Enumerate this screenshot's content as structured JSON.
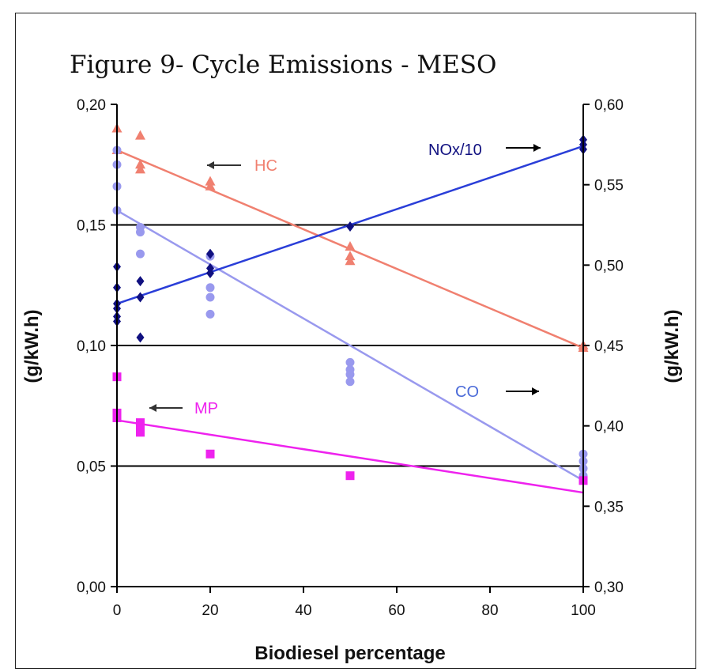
{
  "chart_data": {
    "type": "scatter",
    "title": "Figure 9- Cycle Emissions - MESO",
    "xlabel": "Biodiesel percentage",
    "ylabel_left": "(g/kW.h)",
    "ylabel_right": "(g/kW.h)",
    "xlim": [
      0,
      100
    ],
    "ylim_left": [
      0,
      0.2
    ],
    "ylim_right": [
      0.3,
      0.6
    ],
    "x_ticks": [
      "0",
      "20",
      "40",
      "60",
      "80",
      "100"
    ],
    "y_ticks_left": [
      "0,00",
      "0,05",
      "0,10",
      "0,15",
      "0,20"
    ],
    "y_ticks_right": [
      "0,30",
      "0,35",
      "0,40",
      "0,45",
      "0,50",
      "0,55",
      "0,60"
    ],
    "gridlines_left": [
      0.05,
      0.1,
      0.15
    ],
    "series": [
      {
        "name": "HC",
        "axis": "left",
        "color": "#f08070",
        "marker": "triangle",
        "points": [
          [
            0,
            0.19
          ],
          [
            0,
            0.181
          ],
          [
            5,
            0.187
          ],
          [
            5,
            0.175
          ],
          [
            5,
            0.173
          ],
          [
            20,
            0.168
          ],
          [
            20,
            0.166
          ],
          [
            50,
            0.141
          ],
          [
            50,
            0.137
          ],
          [
            50,
            0.135
          ],
          [
            100,
            0.1
          ],
          [
            100,
            0.099
          ]
        ],
        "trend": [
          [
            0,
            0.181
          ],
          [
            100,
            0.099
          ]
        ]
      },
      {
        "name": "CO",
        "axis": "left",
        "color": "#9999ee",
        "marker": "circle",
        "points": [
          [
            0,
            0.181
          ],
          [
            0,
            0.175
          ],
          [
            0,
            0.166
          ],
          [
            0,
            0.156
          ],
          [
            5,
            0.149
          ],
          [
            5,
            0.147
          ],
          [
            5,
            0.138
          ],
          [
            20,
            0.137
          ],
          [
            20,
            0.124
          ],
          [
            20,
            0.12
          ],
          [
            20,
            0.113
          ],
          [
            50,
            0.093
          ],
          [
            50,
            0.09
          ],
          [
            50,
            0.088
          ],
          [
            50,
            0.085
          ],
          [
            100,
            0.055
          ],
          [
            100,
            0.052
          ],
          [
            100,
            0.049
          ],
          [
            100,
            0.046
          ]
        ],
        "trend": [
          [
            0,
            0.156
          ],
          [
            100,
            0.044
          ]
        ]
      },
      {
        "name": "NOx/10",
        "axis": "right",
        "color": "#101080",
        "marker": "diamond",
        "points": [
          [
            0,
            0.499
          ],
          [
            0,
            0.486
          ],
          [
            0,
            0.476
          ],
          [
            0,
            0.473
          ],
          [
            0,
            0.468
          ],
          [
            0,
            0.465
          ],
          [
            5,
            0.49
          ],
          [
            5,
            0.48
          ],
          [
            5,
            0.455
          ],
          [
            20,
            0.507
          ],
          [
            20,
            0.498
          ],
          [
            20,
            0.495
          ],
          [
            50,
            0.524
          ],
          [
            100,
            0.578
          ],
          [
            100,
            0.575
          ],
          [
            100,
            0.572
          ]
        ],
        "trend_line": [
          [
            0,
            0.476
          ],
          [
            100,
            0.574
          ]
        ],
        "trend_color": "#2a3ed8"
      },
      {
        "name": "MP",
        "axis": "left",
        "color": "#ee22ee",
        "marker": "square",
        "points": [
          [
            0,
            0.087
          ],
          [
            0,
            0.072
          ],
          [
            0,
            0.07
          ],
          [
            5,
            0.068
          ],
          [
            5,
            0.066
          ],
          [
            5,
            0.064
          ],
          [
            20,
            0.055
          ],
          [
            50,
            0.046
          ],
          [
            100,
            0.044
          ]
        ],
        "trend": [
          [
            0,
            0.069
          ],
          [
            100,
            0.039
          ]
        ]
      }
    ],
    "annotations": [
      {
        "text": "HC",
        "color": "#f08070",
        "arrow": "left"
      },
      {
        "text": "NOx/10",
        "color": "#101080",
        "arrow": "right"
      },
      {
        "text": "CO",
        "color": "#4a6ad8",
        "arrow": "right"
      },
      {
        "text": "MP",
        "color": "#ee22ee",
        "arrow": "left"
      }
    ]
  }
}
